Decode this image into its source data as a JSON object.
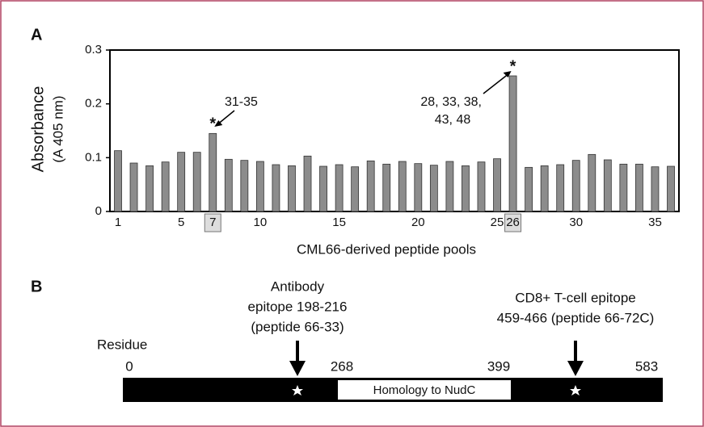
{
  "chart_data": {
    "type": "bar",
    "panel": "A",
    "ylabel": [
      "Absorbance",
      "(A 405 nm)"
    ],
    "xlabel": "CML66-derived peptide pools",
    "categories": [
      "1",
      null,
      null,
      null,
      "5",
      null,
      "7",
      null,
      null,
      "10",
      null,
      null,
      null,
      null,
      "15",
      null,
      null,
      null,
      null,
      "20",
      null,
      null,
      null,
      null,
      "25",
      "26",
      null,
      null,
      null,
      "30",
      null,
      null,
      null,
      null,
      "35",
      null
    ],
    "values": [
      0.113,
      0.09,
      0.085,
      0.092,
      0.11,
      0.11,
      0.145,
      0.097,
      0.095,
      0.093,
      0.087,
      0.085,
      0.103,
      0.084,
      0.087,
      0.083,
      0.094,
      0.088,
      0.093,
      0.089,
      0.086,
      0.093,
      0.085,
      0.092,
      0.098,
      0.252,
      0.082,
      0.085,
      0.087,
      0.095,
      0.106,
      0.096,
      0.088,
      0.088,
      0.083,
      0.084
    ],
    "color": "#8c8c8c",
    "ylim": [
      0,
      0.3
    ],
    "yticks": [
      0,
      0.1,
      0.2,
      0.3
    ],
    "annotations": [
      {
        "marker": "*",
        "lines": [
          "31-35"
        ]
      },
      {
        "marker": "*",
        "lines": [
          "28, 33, 38,",
          "43, 48"
        ]
      }
    ]
  },
  "diagram": {
    "panel": "B",
    "residue_label": "Residue",
    "residues": [
      "0",
      "268",
      "399",
      "583"
    ],
    "domain": "Homology to NudC",
    "epitopes": [
      {
        "lines": [
          "Antibody",
          "epitope 198-216",
          "(peptide 66-33)"
        ]
      },
      {
        "lines": [
          "CD8+ T-cell epitope",
          "459-466 (peptide 66-72C)"
        ]
      }
    ]
  }
}
